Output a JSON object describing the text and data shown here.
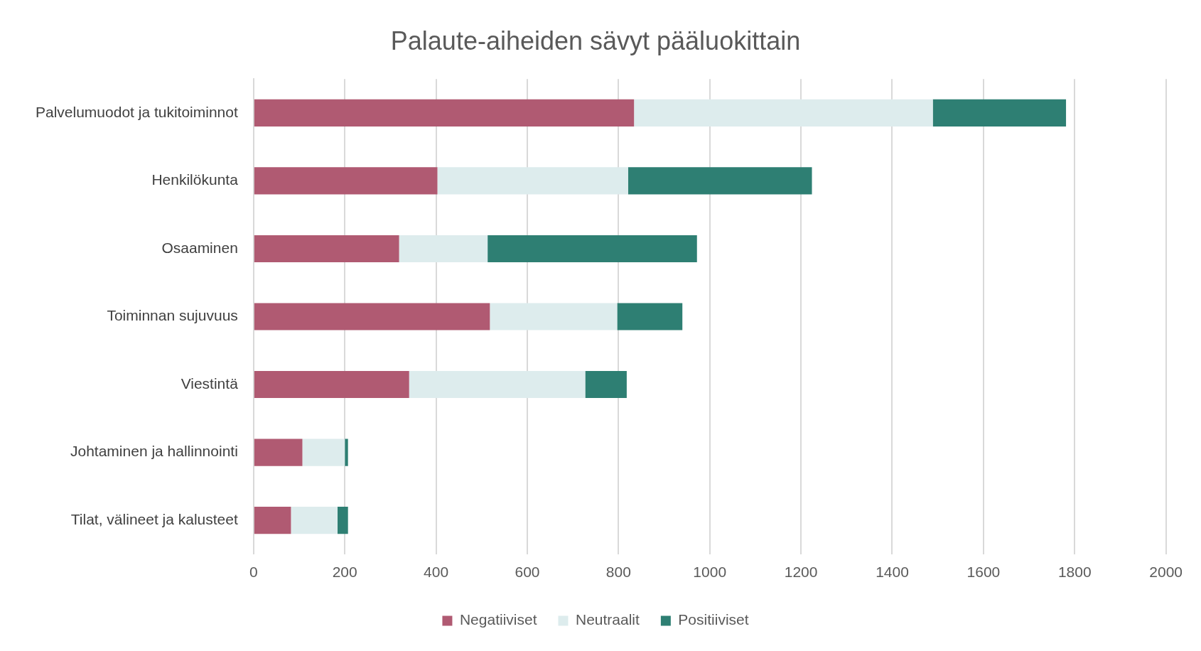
{
  "chart_data": {
    "type": "bar",
    "orientation": "horizontal",
    "stacked": true,
    "title": "Palaute-aiheiden sävyt pääluokittain",
    "categories": [
      "Palvelumuodot ja tukitoiminnot",
      "Henkilökunta",
      "Osaaminen",
      "Toiminnan sujuvuus",
      "Viestintä",
      "Johtaminen ja hallinnointi",
      "Tilat, välineet ja kalusteet"
    ],
    "series": [
      {
        "name": "Negatiiviset",
        "color": "#b05a72",
        "values": [
          834,
          403,
          319,
          518,
          341,
          107,
          82
        ]
      },
      {
        "name": "Neutraalit",
        "color": "#ddeced",
        "values": [
          655,
          418,
          194,
          279,
          386,
          93,
          102
        ]
      },
      {
        "name": "Positiiviset",
        "color": "#2e7f73",
        "values": [
          292,
          403,
          459,
          143,
          91,
          7,
          23
        ]
      }
    ],
    "xlim": [
      0,
      2000
    ],
    "xticks": [
      0,
      200,
      400,
      600,
      800,
      1000,
      1200,
      1400,
      1600,
      1800,
      2000
    ],
    "grid": "x",
    "legend": "bottom"
  }
}
